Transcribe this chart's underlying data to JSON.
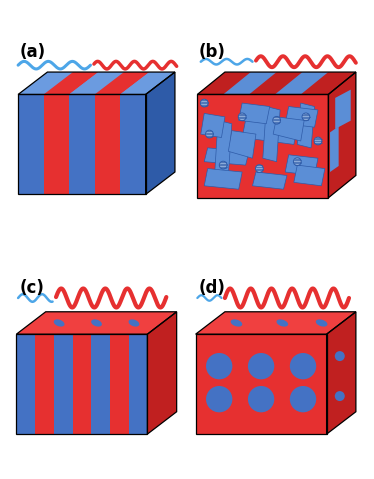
{
  "labels": [
    "(a)",
    "(b)",
    "(c)",
    "(d)"
  ],
  "BLUE": "#4472C4",
  "BLUE_LIGHT": "#5B8ED6",
  "BLUE_DARK": "#2E5BA8",
  "BLUE_TOP": "#6B9BE0",
  "RED": "#E63030",
  "RED_DARK": "#C02020",
  "RED_TOP": "#F04040",
  "BWAVE": "#4DA6E8",
  "RWAVE": "#E63030",
  "BLUE_HATCH": "#8AAAD8"
}
